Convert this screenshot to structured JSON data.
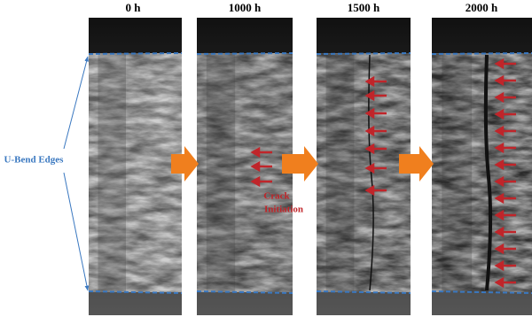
{
  "panels": [
    {
      "label": "0 h"
    },
    {
      "label": "1000 h"
    },
    {
      "label": "1500 h"
    },
    {
      "label": "2000 h"
    }
  ],
  "annotations": {
    "edges": "U-Bend Edges",
    "crack": [
      "Crack",
      "Initiation"
    ]
  }
}
